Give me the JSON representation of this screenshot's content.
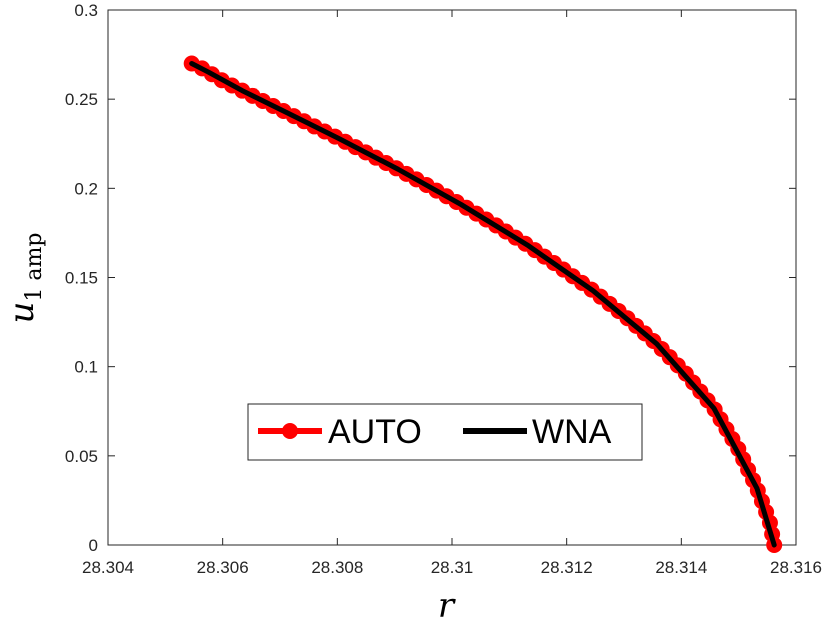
{
  "chart_data": {
    "type": "line",
    "xlabel": "r",
    "ylabel_main": "u",
    "ylabel_sub": "1 amp",
    "xlim": [
      28.304,
      28.316
    ],
    "ylim": [
      0,
      0.3
    ],
    "xticks": [
      28.304,
      28.306,
      28.308,
      28.31,
      28.312,
      28.314,
      28.316
    ],
    "xtick_labels": [
      "28.304",
      "28.306",
      "28.308",
      "28.31",
      "28.312",
      "28.314",
      "28.316"
    ],
    "yticks": [
      0,
      0.05,
      0.1,
      0.15,
      0.2,
      0.25,
      0.3
    ],
    "ytick_labels": [
      "0",
      "0.05",
      "0.1",
      "0.15",
      "0.2",
      "0.25",
      "0.3"
    ],
    "grid": false,
    "legend_position": "center-bottom",
    "series": [
      {
        "name": "AUTO",
        "color": "#ff0000",
        "style": "line-with-circle-markers",
        "x": [
          28.30546,
          28.30556,
          28.30575,
          28.30601,
          28.30634,
          28.3067,
          28.30711,
          28.30755,
          28.30803,
          28.30853,
          28.30906,
          28.3096,
          28.31016,
          28.31073,
          28.31131,
          28.31188,
          28.31246,
          28.31302,
          28.31357,
          28.31409,
          28.31457,
          28.31499,
          28.31532,
          28.31554,
          28.31562
        ],
        "y": [
          0.27,
          0.2688,
          0.2652,
          0.2601,
          0.2548,
          0.249,
          0.2426,
          0.2355,
          0.2279,
          0.2196,
          0.2107,
          0.2011,
          0.1909,
          0.18,
          0.1683,
          0.1559,
          0.1426,
          0.1283,
          0.1128,
          0.0957,
          0.0766,
          0.0541,
          0.0317,
          0.0134,
          0.0
        ]
      },
      {
        "name": "WNA",
        "color": "#000000",
        "style": "line",
        "x": [
          28.30546,
          28.30575,
          28.30634,
          28.30711,
          28.30803,
          28.30906,
          28.31016,
          28.31131,
          28.31246,
          28.31357,
          28.31457,
          28.31532,
          28.31562
        ],
        "y": [
          0.27,
          0.2652,
          0.2548,
          0.2426,
          0.2279,
          0.2107,
          0.1909,
          0.1683,
          0.1426,
          0.1128,
          0.0766,
          0.0317,
          0.0
        ]
      }
    ]
  }
}
